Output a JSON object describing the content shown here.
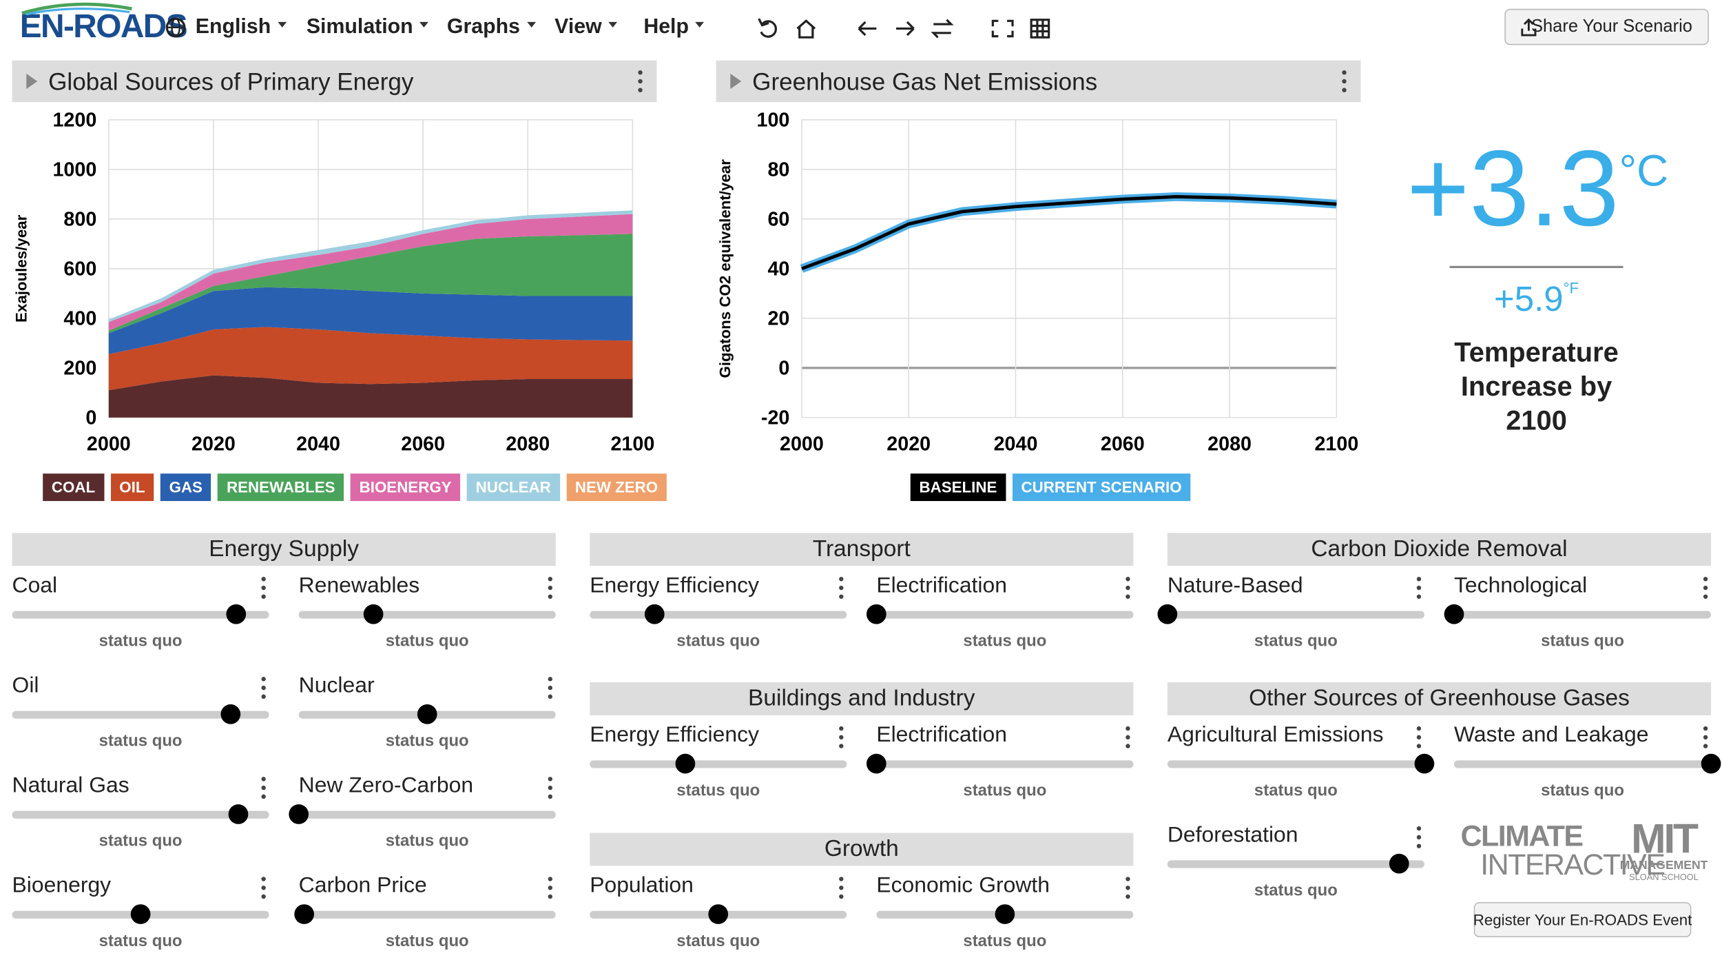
{
  "nav": {
    "logo": "EN-ROADS",
    "menus": [
      "English",
      "Simulation",
      "Graphs",
      "View",
      "Help"
    ],
    "share": "Share Your Scenario"
  },
  "chart_data": [
    {
      "type": "area",
      "title": "Global Sources of Primary Energy",
      "y_label": "Exajoules/year",
      "stacked": true,
      "grid": true,
      "x": [
        2000,
        2010,
        2020,
        2030,
        2040,
        2050,
        2060,
        2070,
        2080,
        2090,
        2100
      ],
      "xlim": [
        2000,
        2100
      ],
      "xticks": [
        2000,
        2020,
        2040,
        2060,
        2080,
        2100
      ],
      "ylim": [
        0,
        1200
      ],
      "yticks": [
        0,
        200,
        400,
        600,
        800,
        1000,
        1200
      ],
      "series": [
        {
          "name": "COAL",
          "color": "#5a2b2d",
          "values": [
            110,
            145,
            170,
            160,
            140,
            135,
            140,
            150,
            155,
            155,
            155
          ]
        },
        {
          "name": "OIL",
          "color": "#c64a26",
          "values": [
            145,
            155,
            185,
            205,
            215,
            205,
            190,
            170,
            160,
            157,
            155
          ]
        },
        {
          "name": "GAS",
          "color": "#2a60b0",
          "values": [
            85,
            120,
            155,
            160,
            165,
            170,
            170,
            175,
            175,
            178,
            180
          ]
        },
        {
          "name": "RENEWABLES",
          "color": "#4aa35a",
          "values": [
            10,
            20,
            20,
            45,
            90,
            140,
            190,
            225,
            240,
            245,
            250
          ]
        },
        {
          "name": "BIOENERGY",
          "color": "#dc6aa8",
          "values": [
            35,
            25,
            50,
            55,
            45,
            40,
            50,
            60,
            70,
            75,
            80
          ]
        },
        {
          "name": "NUCLEAR",
          "color": "#9ecfe0",
          "values": [
            10,
            15,
            15,
            15,
            20,
            20,
            15,
            15,
            15,
            15,
            15
          ]
        },
        {
          "name": "NEW ZERO",
          "color": "#f0a06a",
          "values": [
            0,
            0,
            0,
            0,
            0,
            0,
            0,
            0,
            0,
            0,
            0
          ]
        }
      ]
    },
    {
      "type": "line",
      "title": "Greenhouse Gas Net Emissions",
      "y_label": "Gigatons CO2 equivalent/year",
      "grid": true,
      "x": [
        2000,
        2010,
        2020,
        2030,
        2040,
        2050,
        2060,
        2070,
        2080,
        2090,
        2100
      ],
      "xlim": [
        2000,
        2100
      ],
      "xticks": [
        2000,
        2020,
        2040,
        2060,
        2080,
        2100
      ],
      "ylim": [
        -20,
        100
      ],
      "yticks": [
        -20,
        0,
        20,
        40,
        60,
        80,
        100
      ],
      "series": [
        {
          "name": "BASELINE",
          "color": "#000000",
          "values": [
            40,
            48,
            58,
            63,
            65,
            66.5,
            68,
            69,
            68.5,
            67.5,
            66
          ]
        },
        {
          "name": "CURRENT SCENARIO",
          "color": "#4aaee8",
          "values": [
            40,
            48,
            58,
            63,
            65,
            66.5,
            68,
            69,
            68.5,
            67.5,
            66
          ]
        }
      ]
    }
  ],
  "temperature": {
    "celsius": "+3.3",
    "celsius_unit": "°C",
    "fahrenheit": "+5.9",
    "fahrenheit_unit": "°F",
    "caption": "Temperature Increase by 2100"
  },
  "slider_scale": [
    0,
    100
  ],
  "control_groups": [
    {
      "title": "Energy Supply",
      "sliders": [
        {
          "label": "Coal",
          "status": "status quo",
          "value": 87
        },
        {
          "label": "Renewables",
          "status": "status quo",
          "value": 29
        },
        {
          "label": "Oil",
          "status": "status quo",
          "value": 85
        },
        {
          "label": "Nuclear",
          "status": "status quo",
          "value": 50
        },
        {
          "label": "Natural Gas",
          "status": "status quo",
          "value": 88
        },
        {
          "label": "New Zero-Carbon",
          "status": "status quo",
          "value": 0
        },
        {
          "label": "Bioenergy",
          "status": "status quo",
          "value": 50
        },
        {
          "label": "Carbon Price",
          "status": "status quo",
          "value": 2
        }
      ]
    },
    {
      "title": "Transport",
      "sliders": [
        {
          "label": "Energy Efficiency",
          "status": "status quo",
          "value": 25
        },
        {
          "label": "Electrification",
          "status": "status quo",
          "value": 0
        }
      ]
    },
    {
      "title": "Buildings and Industry",
      "sliders": [
        {
          "label": "Energy Efficiency",
          "status": "status quo",
          "value": 37
        },
        {
          "label": "Electrification",
          "status": "status quo",
          "value": 0
        }
      ]
    },
    {
      "title": "Growth",
      "sliders": [
        {
          "label": "Population",
          "status": "status quo",
          "value": 50
        },
        {
          "label": "Economic Growth",
          "status": "status quo",
          "value": 50
        }
      ]
    },
    {
      "title": "Carbon Dioxide Removal",
      "sliders": [
        {
          "label": "Nature-Based",
          "status": "status quo",
          "value": 0
        },
        {
          "label": "Technological",
          "status": "status quo",
          "value": 0
        }
      ]
    },
    {
      "title": "Other Sources of Greenhouse Gases",
      "sliders": [
        {
          "label": "Agricultural Emissions",
          "status": "status quo",
          "value": 100
        },
        {
          "label": "Waste and Leakage",
          "status": "status quo",
          "value": 100
        },
        {
          "label": "Deforestation",
          "status": "status quo",
          "value": 90
        }
      ]
    }
  ],
  "footer": {
    "ci_top": "CLIMATE",
    "ci_bottom": "INTERACTIVE",
    "mit": "MIT",
    "mit_sub": "MANAGEMENT",
    "mit_sub2": "SLOAN SCHOOL",
    "register": "Register Your En-ROADS Event"
  }
}
